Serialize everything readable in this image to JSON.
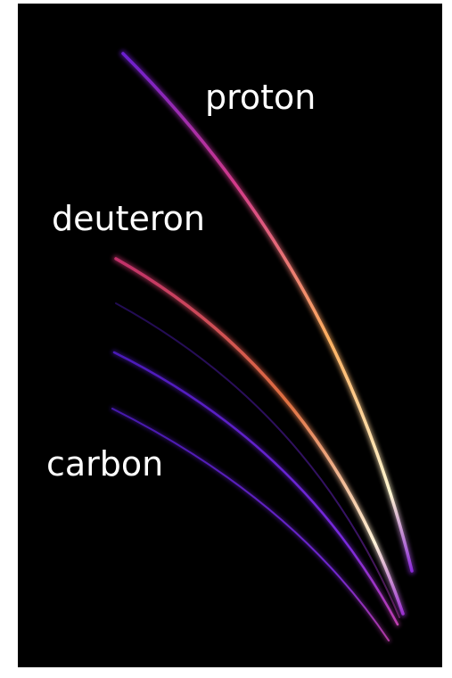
{
  "labels": {
    "proton": "proton",
    "deuteron": "deuteron",
    "carbon": "carbon"
  }
}
